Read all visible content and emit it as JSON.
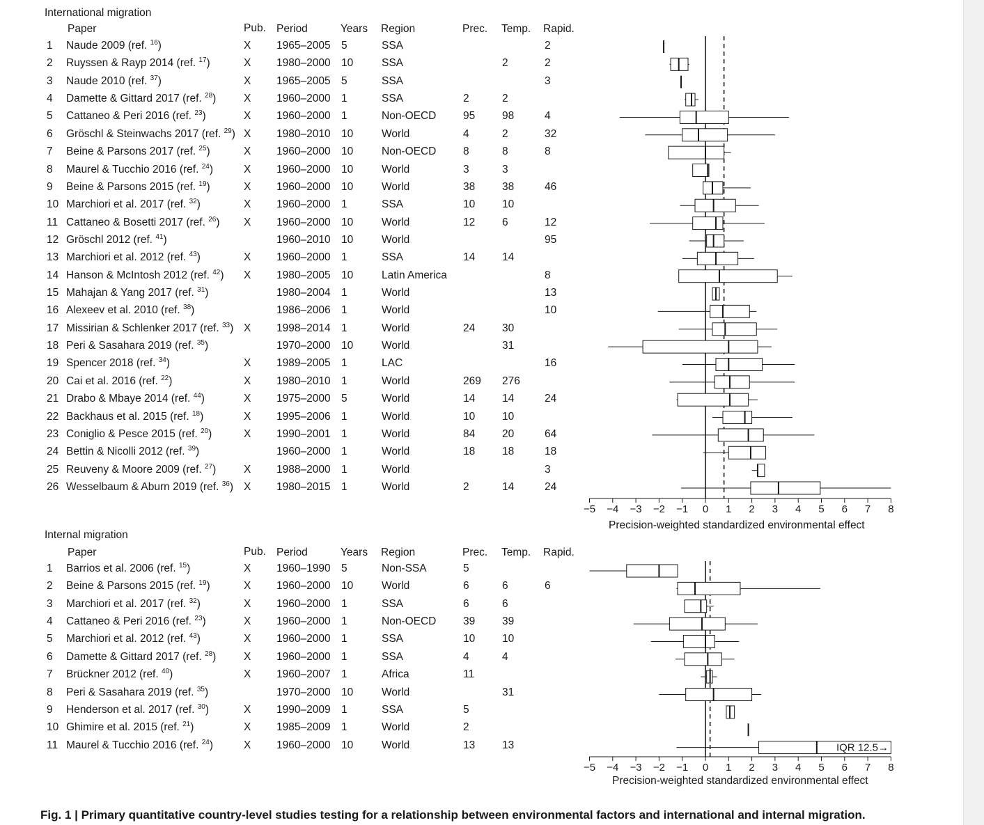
{
  "caption": "Fig. 1 | Primary quantitative country-level studies testing for a relationship between environmental factors and international and internal migration.",
  "headers": {
    "paper": "Paper",
    "pub": "Pub.",
    "period": "Period",
    "years": "Years",
    "region": "Region",
    "prec": "Prec.",
    "temp": "Temp.",
    "rapid": "Rapid."
  },
  "chart_data": [
    {
      "type": "boxplot",
      "title": "International migration",
      "xlabel": "Precision-weighted standardized environmental effect",
      "xlim": [
        -5,
        8
      ],
      "xticks": [
        "−5",
        "−4",
        "−3",
        "−2",
        "−1",
        "0",
        "1",
        "2",
        "3",
        "4",
        "5",
        "6",
        "7",
        "8"
      ],
      "reference_lines": {
        "solid": 0,
        "dashed": 0.8
      },
      "rows": [
        {
          "n": "1",
          "paper": "Naude 2009 (ref.",
          "ref": "16",
          "pub": "X",
          "period": "1965–2005",
          "years": "5",
          "region": "SSA",
          "prec": "",
          "temp": "",
          "rapid": "2",
          "min": -1.8,
          "q1": -1.8,
          "med": -1.8,
          "q3": -1.8,
          "max": -1.8
        },
        {
          "n": "2",
          "paper": "Ruyssen & Rayp 2014 (ref.",
          "ref": "17",
          "pub": "X",
          "period": "1980–2000",
          "years": "10",
          "region": "SSA",
          "prec": "",
          "temp": "2",
          "rapid": "2",
          "min": -1.55,
          "q1": -1.5,
          "med": -1.15,
          "q3": -0.75,
          "max": -0.7
        },
        {
          "n": "3",
          "paper": "Naude 2010 (ref.",
          "ref": "37",
          "pub": "X",
          "period": "1965–2005",
          "years": "5",
          "region": "SSA",
          "prec": "",
          "temp": "",
          "rapid": "3",
          "min": -1.05,
          "q1": -1.05,
          "med": -1.05,
          "q3": -1.05,
          "max": -1.05
        },
        {
          "n": "4",
          "paper": "Damette & Gittard 2017 (ref.",
          "ref": "28",
          "pub": "X",
          "period": "1960–2000",
          "years": "1",
          "region": "SSA",
          "prec": "2",
          "temp": "2",
          "rapid": "",
          "min": -0.9,
          "q1": -0.85,
          "med": -0.6,
          "q3": -0.45,
          "max": -0.3
        },
        {
          "n": "5",
          "paper": "Cattaneo & Peri 2016 (ref.",
          "ref": "23",
          "pub": "X",
          "period": "1960–2000",
          "years": "1",
          "region": "Non-OECD",
          "prec": "95",
          "temp": "98",
          "rapid": "4",
          "min": -3.7,
          "q1": -1.1,
          "med": -0.4,
          "q3": 1.0,
          "max": 3.6
        },
        {
          "n": "6",
          "paper": "Gröschl & Steinwachs 2017 (ref.",
          "ref": "29",
          "pub": "X",
          "period": "1980–2010",
          "years": "10",
          "region": "World",
          "prec": "4",
          "temp": "2",
          "rapid": "32",
          "min": -2.6,
          "q1": -1.0,
          "med": -0.3,
          "q3": 0.95,
          "max": 3.0
        },
        {
          "n": "7",
          "paper": "Beine & Parsons 2017 (ref.",
          "ref": "25",
          "pub": "X",
          "period": "1960–2000",
          "years": "10",
          "region": "Non-OECD",
          "prec": "8",
          "temp": "8",
          "rapid": "8",
          "min": -1.6,
          "q1": -1.6,
          "med": 0.0,
          "q3": 0.8,
          "max": 1.1
        },
        {
          "n": "8",
          "paper": "Maurel & Tucchio 2016 (ref.",
          "ref": "24",
          "pub": "X",
          "period": "1960–2000",
          "years": "10",
          "region": "World",
          "prec": "3",
          "temp": "3",
          "rapid": "",
          "min": -0.55,
          "q1": -0.55,
          "med": 0.1,
          "q3": 0.15,
          "max": 0.15
        },
        {
          "n": "9",
          "paper": "Beine & Parsons 2015 (ref.",
          "ref": "19",
          "pub": "X",
          "period": "1960–2000",
          "years": "10",
          "region": "World",
          "prec": "38",
          "temp": "38",
          "rapid": "46",
          "min": -0.1,
          "q1": -0.1,
          "med": 0.3,
          "q3": 0.75,
          "max": 1.95
        },
        {
          "n": "10",
          "paper": "Marchiori et al. 2017 (ref.",
          "ref": "32",
          "pub": "X",
          "period": "1960–2000",
          "years": "1",
          "region": "SSA",
          "prec": "10",
          "temp": "10",
          "rapid": "",
          "min": -1.1,
          "q1": -0.45,
          "med": 0.35,
          "q3": 1.3,
          "max": 2.3
        },
        {
          "n": "11",
          "paper": "Cattaneo & Bosetti 2017 (ref.",
          "ref": "26",
          "pub": "X",
          "period": "1960–2000",
          "years": "10",
          "region": "World",
          "prec": "12",
          "temp": "6",
          "rapid": "12",
          "min": -2.4,
          "q1": -0.55,
          "med": 0.45,
          "q3": 0.75,
          "max": 2.55
        },
        {
          "n": "12",
          "paper": "Gröschl 2012 (ref.",
          "ref": "41",
          "pub": "",
          "period": "1960–2010",
          "years": "10",
          "region": "World",
          "prec": "",
          "temp": "",
          "rapid": "95",
          "min": -0.7,
          "q1": 0.05,
          "med": 0.35,
          "q3": 0.8,
          "max": 1.65
        },
        {
          "n": "13",
          "paper": "Marchiori et al. 2012 (ref.",
          "ref": "43",
          "pub": "X",
          "period": "1960–2000",
          "years": "1",
          "region": "SSA",
          "prec": "14",
          "temp": "14",
          "rapid": "",
          "min": -1.0,
          "q1": -0.35,
          "med": 0.45,
          "q3": 1.4,
          "max": 2.1
        },
        {
          "n": "14",
          "paper": "Hanson & McIntosh 2012 (ref.",
          "ref": "42",
          "pub": "X",
          "period": "1980–2005",
          "years": "10",
          "region": "Latin America",
          "prec": "",
          "temp": "",
          "rapid": "8",
          "min": -1.15,
          "q1": -1.15,
          "med": 0.6,
          "q3": 3.1,
          "max": 3.75
        },
        {
          "n": "15",
          "paper": "Mahajan & Yang 2017 (ref.",
          "ref": "31",
          "pub": "",
          "period": "1980–2004",
          "years": "1",
          "region": "World",
          "prec": "",
          "temp": "",
          "rapid": "13",
          "min": 0.3,
          "q1": 0.3,
          "med": 0.45,
          "q3": 0.6,
          "max": 0.6
        },
        {
          "n": "16",
          "paper": "Alexeev et al. 2010 (ref.",
          "ref": "38",
          "pub": "",
          "period": "1986–2006",
          "years": "1",
          "region": "World",
          "prec": "",
          "temp": "",
          "rapid": "10",
          "min": -2.05,
          "q1": 0.2,
          "med": 0.75,
          "q3": 1.9,
          "max": 2.2
        },
        {
          "n": "17",
          "paper": "Missirian & Schlenker 2017 (ref.",
          "ref": "33",
          "pub": "X",
          "period": "1998–2014",
          "years": "1",
          "region": "World",
          "prec": "24",
          "temp": "30",
          "rapid": "",
          "min": -1.15,
          "q1": 0.3,
          "med": 0.85,
          "q3": 2.2,
          "max": 3.1
        },
        {
          "n": "18",
          "paper": "Peri & Sasahara 2019 (ref.",
          "ref": "35",
          "pub": "",
          "period": "1970–2000",
          "years": "10",
          "region": "World",
          "prec": "",
          "temp": "31",
          "rapid": "",
          "min": -4.2,
          "q1": -2.7,
          "med": 1.0,
          "q3": 2.25,
          "max": 2.85
        },
        {
          "n": "19",
          "paper": "Spencer 2018 (ref.",
          "ref": "34",
          "pub": "X",
          "period": "1989–2005",
          "years": "1",
          "region": "LAC",
          "prec": "",
          "temp": "",
          "rapid": "16",
          "min": -1.0,
          "q1": 0.45,
          "med": 1.0,
          "q3": 2.45,
          "max": 3.85
        },
        {
          "n": "20",
          "paper": "Cai et al. 2016 (ref.",
          "ref": "22",
          "pub": "X",
          "period": "1980–2010",
          "years": "1",
          "region": "World",
          "prec": "269",
          "temp": "276",
          "rapid": "",
          "min": -1.55,
          "q1": 0.4,
          "med": 1.05,
          "q3": 1.9,
          "max": 3.85
        },
        {
          "n": "21",
          "paper": "Drabo & Mbaye 2014 (ref.",
          "ref": "44",
          "pub": "X",
          "period": "1975–2000",
          "years": "5",
          "region": "World",
          "prec": "14",
          "temp": "14",
          "rapid": "24",
          "min": -1.25,
          "q1": -1.2,
          "med": 1.05,
          "q3": 1.85,
          "max": 2.25
        },
        {
          "n": "22",
          "paper": "Backhaus et al. 2015 (ref.",
          "ref": "18",
          "pub": "X",
          "period": "1995–2006",
          "years": "1",
          "region": "World",
          "prec": "10",
          "temp": "10",
          "rapid": "",
          "min": 0.3,
          "q1": 0.75,
          "med": 1.7,
          "q3": 2.0,
          "max": 3.75
        },
        {
          "n": "23",
          "paper": "Coniglio & Pesce 2015 (ref.",
          "ref": "20",
          "pub": "X",
          "period": "1990–2001",
          "years": "1",
          "region": "World",
          "prec": "84",
          "temp": "20",
          "rapid": "64",
          "min": -2.3,
          "q1": 0.55,
          "med": 1.85,
          "q3": 2.5,
          "max": 4.7
        },
        {
          "n": "24",
          "paper": "Bettin & Nicolli 2012 (ref.",
          "ref": "39",
          "pub": "",
          "period": "1960–2000",
          "years": "1",
          "region": "World",
          "prec": "18",
          "temp": "18",
          "rapid": "18",
          "min": -0.1,
          "q1": 1.0,
          "med": 1.95,
          "q3": 2.6,
          "max": 2.6
        },
        {
          "n": "25",
          "paper": "Reuveny & Moore 2009 (ref.",
          "ref": "27",
          "pub": "X",
          "period": "1988–2000",
          "years": "1",
          "region": "World",
          "prec": "",
          "temp": "",
          "rapid": "3",
          "min": 2.0,
          "q1": 2.25,
          "med": 2.25,
          "q3": 2.55,
          "max": 2.55
        },
        {
          "n": "26",
          "paper": "Wesselbaum & Aburn 2019 (ref.",
          "ref": "36",
          "pub": "X",
          "period": "1980–2015",
          "years": "1",
          "region": "World",
          "prec": "2",
          "temp": "14",
          "rapid": "24",
          "min": -1.05,
          "q1": 1.95,
          "med": 3.15,
          "q3": 4.95,
          "max": 8.0
        }
      ]
    },
    {
      "type": "boxplot",
      "title": "Internal migration",
      "xlabel": "Precision-weighted standardized environmental effect",
      "xlim": [
        -5,
        8
      ],
      "xticks": [
        "−5",
        "−4",
        "−3",
        "−2",
        "−1",
        "0",
        "1",
        "2",
        "3",
        "4",
        "5",
        "6",
        "7",
        "8"
      ],
      "reference_lines": {
        "solid": 0,
        "dashed": 0.2
      },
      "annotation": "IQR 12.5→",
      "rows": [
        {
          "n": "1",
          "paper": "Barrios et al. 2006 (ref.",
          "ref": "15",
          "pub": "X",
          "period": "1960–1990",
          "years": "5",
          "region": "Non-SSA",
          "prec": "5",
          "temp": "",
          "rapid": "",
          "min": -5.0,
          "q1": -3.4,
          "med": -2.0,
          "q3": -1.2,
          "max": -1.2
        },
        {
          "n": "2",
          "paper": "Beine & Parsons 2015 (ref.",
          "ref": "19",
          "pub": "X",
          "period": "1960–2000",
          "years": "10",
          "region": "World",
          "prec": "6",
          "temp": "6",
          "rapid": "6",
          "min": -1.25,
          "q1": -1.2,
          "med": -0.45,
          "q3": 1.5,
          "max": 4.95
        },
        {
          "n": "3",
          "paper": "Marchiori et al. 2017 (ref.",
          "ref": "32",
          "pub": "X",
          "period": "1960–2000",
          "years": "1",
          "region": "SSA",
          "prec": "6",
          "temp": "6",
          "rapid": "",
          "min": -0.9,
          "q1": -0.9,
          "med": -0.2,
          "q3": 0.05,
          "max": 0.35
        },
        {
          "n": "4",
          "paper": "Cattaneo & Peri 2016 (ref.",
          "ref": "23",
          "pub": "X",
          "period": "1960–2000",
          "years": "1",
          "region": "Non-OECD",
          "prec": "39",
          "temp": "39",
          "rapid": "",
          "min": -3.1,
          "q1": -1.55,
          "med": -0.15,
          "q3": 0.85,
          "max": 2.25
        },
        {
          "n": "5",
          "paper": "Marchiori et al. 2012 (ref.",
          "ref": "43",
          "pub": "X",
          "period": "1960–2000",
          "years": "1",
          "region": "SSA",
          "prec": "10",
          "temp": "10",
          "rapid": "",
          "min": -2.35,
          "q1": -0.95,
          "med": 0.0,
          "q3": 0.4,
          "max": 1.45
        },
        {
          "n": "6",
          "paper": "Damette & Gittard 2017 (ref.",
          "ref": "28",
          "pub": "X",
          "period": "1960–2000",
          "years": "1",
          "region": "SSA",
          "prec": "4",
          "temp": "4",
          "rapid": "",
          "min": -1.3,
          "q1": -0.9,
          "med": 0.1,
          "q3": 0.7,
          "max": 1.25
        },
        {
          "n": "7",
          "paper": "Brückner 2012 (ref.",
          "ref": "40",
          "pub": "X",
          "period": "1960–2007",
          "years": "1",
          "region": "Africa",
          "prec": "11",
          "temp": "",
          "rapid": "",
          "min": -0.2,
          "q1": 0.05,
          "med": 0.2,
          "q3": 0.3,
          "max": 0.5
        },
        {
          "n": "8",
          "paper": "Peri & Sasahara 2019 (ref.",
          "ref": "35",
          "pub": "",
          "period": "1970–2000",
          "years": "10",
          "region": "World",
          "prec": "",
          "temp": "31",
          "rapid": "",
          "min": -2.0,
          "q1": -0.85,
          "med": 0.35,
          "q3": 2.0,
          "max": 2.4
        },
        {
          "n": "9",
          "paper": "Henderson et al. 2017 (ref.",
          "ref": "30",
          "pub": "X",
          "period": "1990–2009",
          "years": "1",
          "region": "SSA",
          "prec": "5",
          "temp": "",
          "rapid": "",
          "min": 0.9,
          "q1": 0.9,
          "med": 1.05,
          "q3": 1.25,
          "max": 1.25
        },
        {
          "n": "10",
          "paper": "Ghimire et al. 2015 (ref.",
          "ref": "21",
          "pub": "X",
          "period": "1985–2009",
          "years": "1",
          "region": "World",
          "prec": "2",
          "temp": "",
          "rapid": "",
          "min": 1.85,
          "q1": 1.85,
          "med": 1.85,
          "q3": 1.85,
          "max": 1.85
        },
        {
          "n": "11",
          "paper": "Maurel & Tucchio 2016 (ref.",
          "ref": "24",
          "pub": "X",
          "period": "1960–2000",
          "years": "10",
          "region": "World",
          "prec": "13",
          "temp": "13",
          "rapid": "",
          "min": -1.25,
          "q1": 2.3,
          "med": 4.8,
          "q3": 8.0,
          "max": 8.0
        }
      ]
    }
  ]
}
